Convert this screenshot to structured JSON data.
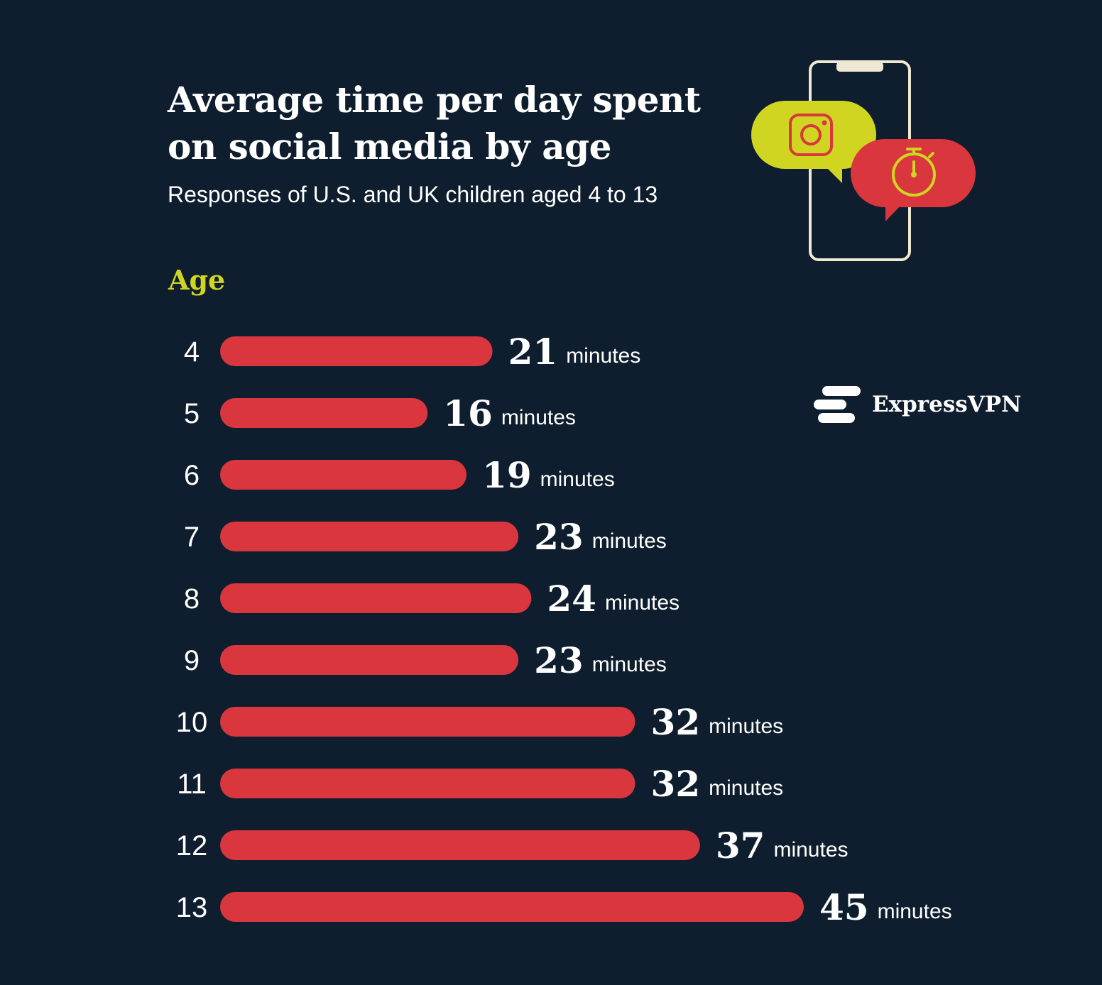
{
  "header": {
    "title_line1": "Average time per day spent",
    "title_line2": "on social media by age",
    "subtitle": "Responses of U.S. and UK children aged 4 to 13"
  },
  "brand": {
    "name": "ExpressVPN"
  },
  "colors": {
    "background": "#0f1e2e",
    "bar": "#d9363e",
    "accent": "#d0d521",
    "text": "#ffffff",
    "phone_outline": "#efe9d4"
  },
  "icons": [
    "phone-icon",
    "instagram-icon",
    "stopwatch-icon",
    "expressvpn-logo-icon"
  ],
  "chart_data": {
    "type": "bar",
    "orientation": "horizontal",
    "ylabel": "Age",
    "categories": [
      "4",
      "5",
      "6",
      "7",
      "8",
      "9",
      "10",
      "11",
      "12",
      "13"
    ],
    "series": [
      {
        "name": "Average minutes per day",
        "values": [
          21,
          16,
          19,
          23,
          24,
          23,
          32,
          32,
          37,
          45
        ],
        "unit": "minutes"
      }
    ]
  }
}
